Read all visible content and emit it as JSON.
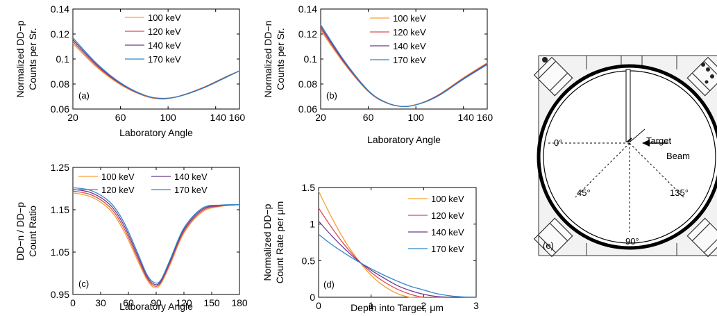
{
  "chart_data": [
    {
      "id": "a",
      "type": "line",
      "panel_label": "(a)",
      "xlabel": "Laboratory Angle",
      "ylabel": [
        "Normalized DD−p",
        "Counts per Sr."
      ],
      "xlim": [
        20,
        160
      ],
      "ylim": [
        0.06,
        0.14
      ],
      "xticks": [
        20,
        60,
        100,
        140,
        160
      ],
      "xtick_labels": [
        "20",
        "60",
        "100",
        "140 160"
      ],
      "yticks": [
        0.06,
        0.08,
        0.1,
        0.12,
        0.14
      ],
      "ytick_labels": [
        "0.06",
        "0.08",
        "0.1",
        "0.12",
        "0.14"
      ],
      "legend_position": "top-center",
      "x": [
        20,
        40,
        60,
        80,
        95,
        110,
        130,
        150,
        160
      ],
      "series": [
        {
          "name": "100 keV",
          "color": "#f5a030",
          "values": [
            0.1125,
            0.0935,
            0.0795,
            0.0705,
            0.068,
            0.0705,
            0.0775,
            0.0865,
            0.0905
          ]
        },
        {
          "name": "120 keV",
          "color": "#e04858",
          "values": [
            0.114,
            0.0945,
            0.08,
            0.0708,
            0.0682,
            0.0705,
            0.0773,
            0.0863,
            0.0905
          ]
        },
        {
          "name": "140 keV",
          "color": "#6a3c8c",
          "values": [
            0.1155,
            0.0955,
            0.0805,
            0.071,
            0.0684,
            0.0704,
            0.0771,
            0.0861,
            0.0905
          ]
        },
        {
          "name": "170 keV",
          "color": "#2f86cc",
          "values": [
            0.117,
            0.0965,
            0.081,
            0.0712,
            0.0686,
            0.0703,
            0.0769,
            0.0859,
            0.0905
          ]
        }
      ]
    },
    {
      "id": "b",
      "type": "line",
      "panel_label": "(b)",
      "xlabel": "Laboratory Angle",
      "ylabel": [
        "Normalized DD−n",
        "Counts per Sr."
      ],
      "xlim": [
        20,
        160
      ],
      "ylim": [
        0.06,
        0.14
      ],
      "xticks": [
        20,
        60,
        100,
        140,
        160
      ],
      "xtick_labels": [
        "20",
        "60",
        "100",
        "140 160"
      ],
      "yticks": [
        0.06,
        0.08,
        0.1,
        0.12,
        0.14
      ],
      "ytick_labels": [
        "0.06",
        "0.08",
        "0.1",
        "0.12",
        "0.14"
      ],
      "legend_position": "top-center",
      "x": [
        20,
        40,
        60,
        75,
        90,
        105,
        120,
        140,
        160
      ],
      "series": [
        {
          "name": "100 keV",
          "color": "#f5a030",
          "values": [
            0.123,
            0.096,
            0.074,
            0.065,
            0.062,
            0.065,
            0.072,
            0.085,
            0.097
          ]
        },
        {
          "name": "120 keV",
          "color": "#e04858",
          "values": [
            0.1245,
            0.0968,
            0.0743,
            0.0651,
            0.062,
            0.0649,
            0.0717,
            0.0846,
            0.0965
          ]
        },
        {
          "name": "140 keV",
          "color": "#6a3c8c",
          "values": [
            0.126,
            0.0976,
            0.0746,
            0.0652,
            0.062,
            0.0648,
            0.0714,
            0.0842,
            0.096
          ]
        },
        {
          "name": "170 keV",
          "color": "#2f86cc",
          "values": [
            0.1275,
            0.0984,
            0.0749,
            0.0653,
            0.062,
            0.0647,
            0.0711,
            0.0838,
            0.0955
          ]
        }
      ]
    },
    {
      "id": "c",
      "type": "line",
      "panel_label": "(c)",
      "xlabel": "Laboratory Angle",
      "ylabel": [
        "DD−n / DD−p",
        "Count Ratio"
      ],
      "xlim": [
        0,
        180
      ],
      "ylim": [
        0.95,
        1.25
      ],
      "xticks": [
        0,
        30,
        60,
        90,
        120,
        150,
        180
      ],
      "xtick_labels": [
        "0",
        "30",
        "60",
        "90",
        "120",
        "150",
        "180"
      ],
      "yticks": [
        0.95,
        1.05,
        1.15,
        1.25
      ],
      "ytick_labels": [
        "0.95",
        "1.05",
        "1.15",
        "1.25"
      ],
      "legend_position": "top",
      "x": [
        0,
        20,
        40,
        55,
        70,
        80,
        88,
        95,
        105,
        120,
        140,
        160,
        180
      ],
      "series": [
        {
          "name": "100 keV",
          "color": "#f5a030",
          "values": [
            1.19,
            1.18,
            1.15,
            1.1,
            1.03,
            0.985,
            0.966,
            0.975,
            1.02,
            1.095,
            1.145,
            1.158,
            1.162
          ]
        },
        {
          "name": "120 keV",
          "color": "#e04858",
          "values": [
            1.194,
            1.185,
            1.156,
            1.107,
            1.036,
            0.989,
            0.97,
            0.978,
            1.024,
            1.099,
            1.148,
            1.159,
            1.162
          ]
        },
        {
          "name": "140 keV",
          "color": "#6a3c8c",
          "values": [
            1.198,
            1.19,
            1.162,
            1.114,
            1.042,
            0.993,
            0.974,
            0.981,
            1.028,
            1.103,
            1.151,
            1.16,
            1.162
          ]
        },
        {
          "name": "170 keV",
          "color": "#2f86cc",
          "values": [
            1.202,
            1.195,
            1.168,
            1.121,
            1.048,
            0.997,
            0.978,
            0.984,
            1.032,
            1.107,
            1.154,
            1.161,
            1.162
          ]
        }
      ]
    },
    {
      "id": "d",
      "type": "line",
      "panel_label": "(d)",
      "xlabel": "Depth into Target,  μm",
      "ylabel": [
        "Normalized DD−p",
        "Count Rate per  μm"
      ],
      "xlim": [
        0,
        3
      ],
      "ylim": [
        0,
        1.5
      ],
      "xticks": [
        0,
        1,
        2,
        3
      ],
      "xtick_labels": [
        "0",
        "1",
        "2",
        "3"
      ],
      "yticks": [
        0,
        0.5,
        1,
        1.5
      ],
      "ytick_labels": [
        "0",
        "0.5",
        "1",
        "1.5"
      ],
      "legend_position": "right",
      "x": [
        0,
        0.25,
        0.5,
        0.75,
        1.0,
        1.25,
        1.5,
        1.75,
        2.0,
        2.25,
        2.5,
        2.75,
        3.0
      ],
      "series": [
        {
          "name": "100 keV",
          "color": "#f5a030",
          "values": [
            1.45,
            1.09,
            0.77,
            0.51,
            0.3,
            0.15,
            0.05,
            0.0,
            0.0,
            0.0,
            0.0,
            0.0,
            0.0
          ]
        },
        {
          "name": "120 keV",
          "color": "#e04858",
          "values": [
            1.22,
            0.95,
            0.71,
            0.51,
            0.34,
            0.21,
            0.11,
            0.04,
            0.0,
            0.0,
            0.0,
            0.0,
            0.0
          ]
        },
        {
          "name": "140 keV",
          "color": "#6a3c8c",
          "values": [
            1.04,
            0.84,
            0.66,
            0.5,
            0.37,
            0.26,
            0.16,
            0.09,
            0.04,
            0.01,
            0.0,
            0.0,
            0.0
          ]
        },
        {
          "name": "170 keV",
          "color": "#2f86cc",
          "values": [
            0.86,
            0.72,
            0.6,
            0.49,
            0.39,
            0.3,
            0.22,
            0.15,
            0.1,
            0.05,
            0.02,
            0.005,
            0.0
          ]
        }
      ]
    }
  ],
  "schematic": {
    "panel_label": "(e)",
    "target_label": "Target",
    "beam_label": "Beam",
    "angle_labels": [
      "0°",
      "45°",
      "90°",
      "135°"
    ]
  }
}
